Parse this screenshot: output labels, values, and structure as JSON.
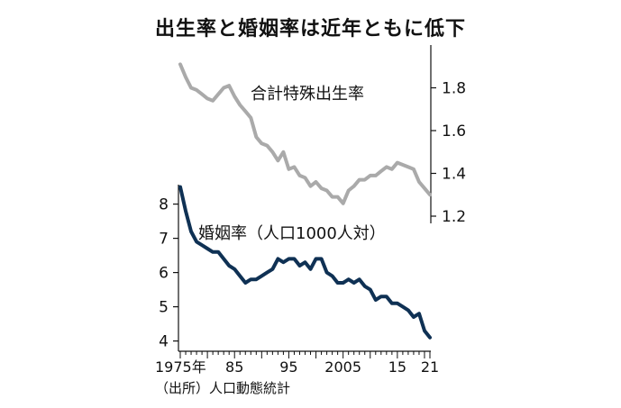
{
  "title": "出生率と婚姻率は近年ともに低下",
  "source": "（出所）人口動態統計",
  "chart_data": {
    "type": "line",
    "x_tick_labels": [
      {
        "x": 1975,
        "label": "1975年"
      },
      {
        "x": 1985,
        "label": "85"
      },
      {
        "x": 1995,
        "label": "95"
      },
      {
        "x": 2005,
        "label": "2005"
      },
      {
        "x": 2015,
        "label": "15"
      },
      {
        "x": 2021,
        "label": "21"
      }
    ],
    "xlim": [
      1975,
      2021
    ],
    "series": [
      {
        "name": "合計特殊出生率",
        "color": "#aaaaaa",
        "axis": "right",
        "ylim": [
          1.2,
          2.0
        ],
        "y_ticks": [
          "1.8",
          "1.6",
          "1.4",
          "1.2"
        ],
        "x": [
          1975,
          1976,
          1977,
          1978,
          1979,
          1980,
          1981,
          1982,
          1983,
          1984,
          1985,
          1986,
          1987,
          1988,
          1989,
          1990,
          1991,
          1992,
          1993,
          1994,
          1995,
          1996,
          1997,
          1998,
          1999,
          2000,
          2001,
          2002,
          2003,
          2004,
          2005,
          2006,
          2007,
          2008,
          2009,
          2010,
          2011,
          2012,
          2013,
          2014,
          2015,
          2016,
          2017,
          2018,
          2019,
          2020,
          2021
        ],
        "values": [
          1.91,
          1.85,
          1.8,
          1.79,
          1.77,
          1.75,
          1.74,
          1.77,
          1.8,
          1.81,
          1.76,
          1.72,
          1.69,
          1.66,
          1.57,
          1.54,
          1.53,
          1.5,
          1.46,
          1.5,
          1.42,
          1.43,
          1.39,
          1.38,
          1.34,
          1.36,
          1.33,
          1.32,
          1.29,
          1.29,
          1.26,
          1.32,
          1.34,
          1.37,
          1.37,
          1.39,
          1.39,
          1.41,
          1.43,
          1.42,
          1.45,
          1.44,
          1.43,
          1.42,
          1.36,
          1.33,
          1.3
        ]
      },
      {
        "name": "婚姻率（人口1000人対）",
        "color": "#0f3154",
        "axis": "left",
        "ylim": [
          3.7,
          8.7
        ],
        "y_ticks": [
          "8",
          "7",
          "6",
          "5",
          "4"
        ],
        "x": [
          1975,
          1976,
          1977,
          1978,
          1979,
          1980,
          1981,
          1982,
          1983,
          1984,
          1985,
          1986,
          1987,
          1988,
          1989,
          1990,
          1991,
          1992,
          1993,
          1994,
          1995,
          1996,
          1997,
          1998,
          1999,
          2000,
          2001,
          2002,
          2003,
          2004,
          2005,
          2006,
          2007,
          2008,
          2009,
          2010,
          2011,
          2012,
          2013,
          2014,
          2015,
          2016,
          2017,
          2018,
          2019,
          2020,
          2021
        ],
        "values": [
          8.5,
          7.8,
          7.2,
          6.9,
          6.8,
          6.7,
          6.6,
          6.6,
          6.4,
          6.2,
          6.1,
          5.9,
          5.7,
          5.8,
          5.8,
          5.9,
          6.0,
          6.1,
          6.4,
          6.3,
          6.4,
          6.4,
          6.2,
          6.3,
          6.1,
          6.4,
          6.4,
          6.0,
          5.9,
          5.7,
          5.7,
          5.8,
          5.7,
          5.8,
          5.6,
          5.5,
          5.2,
          5.3,
          5.3,
          5.1,
          5.1,
          5.0,
          4.9,
          4.7,
          4.8,
          4.3,
          4.1
        ]
      }
    ]
  }
}
